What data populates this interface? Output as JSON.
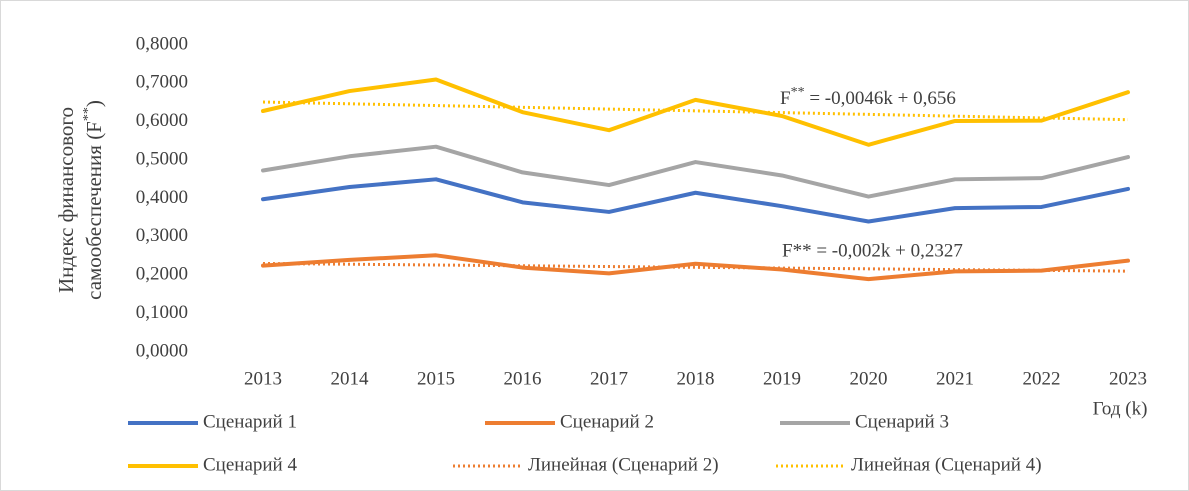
{
  "chart_data": {
    "type": "line",
    "y_label": {
      "line1": "Индекс финансового",
      "line2": "самообеспечения (F",
      "sup": "**",
      "end": ")"
    },
    "x_label": "Год (k)",
    "categories": [
      "2013",
      "2014",
      "2015",
      "2016",
      "2017",
      "2018",
      "2019",
      "2020",
      "2021",
      "2022",
      "2023"
    ],
    "ylim": [
      0,
      0.8
    ],
    "yticks": [
      {
        "value": 0,
        "label": "0,0000"
      },
      {
        "value": 0.1,
        "label": "0,1000"
      },
      {
        "value": 0.2,
        "label": "0,2000"
      },
      {
        "value": 0.3,
        "label": "0,3000"
      },
      {
        "value": 0.4,
        "label": "0,4000"
      },
      {
        "value": 0.5,
        "label": "0,5000"
      },
      {
        "value": 0.6,
        "label": "0,6000"
      },
      {
        "value": 0.7,
        "label": "0,7000"
      },
      {
        "value": 0.8,
        "label": "0,8000"
      }
    ],
    "grid": false,
    "series": [
      {
        "name": "Сценарий 1",
        "color": "#4472c4",
        "style": "solid",
        "values": [
          0.398,
          0.43,
          0.45,
          0.39,
          0.365,
          0.415,
          0.38,
          0.34,
          0.375,
          0.378,
          0.425
        ]
      },
      {
        "name": "Сценарий 2",
        "color": "#ed7d31",
        "style": "solid",
        "values": [
          0.225,
          0.24,
          0.252,
          0.22,
          0.205,
          0.23,
          0.215,
          0.19,
          0.21,
          0.212,
          0.238
        ]
      },
      {
        "name": "Сценарий 3",
        "color": "#a5a5a5",
        "style": "solid",
        "values": [
          0.473,
          0.51,
          0.535,
          0.468,
          0.435,
          0.495,
          0.46,
          0.405,
          0.45,
          0.453,
          0.508
        ]
      },
      {
        "name": "Сценарий 4",
        "color": "#ffc000",
        "style": "solid",
        "values": [
          0.628,
          0.68,
          0.71,
          0.625,
          0.578,
          0.657,
          0.615,
          0.54,
          0.602,
          0.603,
          0.677
        ]
      },
      {
        "name": "Линейная (Сценарий 2)",
        "color": "#ed7d31",
        "style": "dotted",
        "values": [
          0.2307,
          0.2287,
          0.2267,
          0.2247,
          0.2227,
          0.2207,
          0.2187,
          0.2167,
          0.2147,
          0.2127,
          0.2107
        ]
      },
      {
        "name": "Линейная (Сценарий 4)",
        "color": "#ffc000",
        "style": "dotted",
        "values": [
          0.6514,
          0.6468,
          0.6422,
          0.6376,
          0.633,
          0.6284,
          0.6238,
          0.6192,
          0.6146,
          0.61,
          0.6054
        ]
      }
    ],
    "annotations": [
      {
        "base": "F",
        "sup": "**",
        "rest": " = -0,0046k + 0,656"
      },
      {
        "text": "F** = -0,002k + 0,2327"
      }
    ]
  }
}
